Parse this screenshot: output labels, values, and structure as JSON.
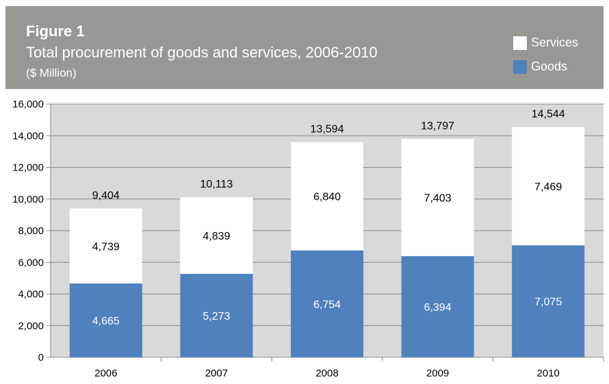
{
  "header": {
    "figure_label": "Figure 1",
    "title": "Total procurement of goods and services, 2006-2010",
    "subtitle": "($ Million)"
  },
  "legend": [
    {
      "name": "Services",
      "color": "#ffffff"
    },
    {
      "name": "Goods",
      "color": "#4f81bd"
    }
  ],
  "chart_data": {
    "type": "bar",
    "stacked": true,
    "title": "Total procurement of goods and services, 2006-2010",
    "ylabel": "",
    "xlabel": "",
    "categories": [
      "2006",
      "2007",
      "2008",
      "2009",
      "2010"
    ],
    "series": [
      {
        "name": "Goods",
        "color": "#4f81bd",
        "values": [
          4665,
          5273,
          6754,
          6394,
          7075
        ],
        "labels": [
          "4,665",
          "5,273",
          "6,754",
          "6,394",
          "7,075"
        ]
      },
      {
        "name": "Services",
        "color": "#ffffff",
        "values": [
          4739,
          4839,
          6840,
          7403,
          7469
        ],
        "labels": [
          "4,739",
          "4,839",
          "6,840",
          "7,403",
          "7,469"
        ]
      }
    ],
    "totals": [
      9404,
      10113,
      13594,
      13797,
      14544
    ],
    "total_labels": [
      "9,404",
      "10,113",
      "13,594",
      "13,797",
      "14,544"
    ],
    "ylim": [
      0,
      16000
    ],
    "yticks": [
      0,
      2000,
      4000,
      6000,
      8000,
      10000,
      12000,
      14000,
      16000
    ],
    "ytick_labels": [
      "0",
      "2,000",
      "4,000",
      "6,000",
      "8,000",
      "10,000",
      "12,000",
      "14,000",
      "16,000"
    ],
    "grid": true,
    "legend_position": "top-right",
    "plot_background": "#d9d9d9"
  }
}
